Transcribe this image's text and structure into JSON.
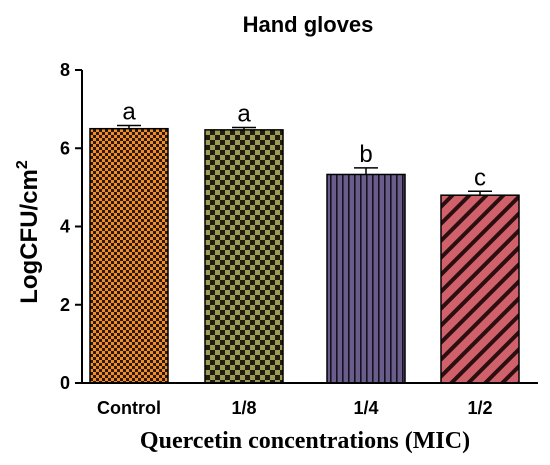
{
  "chart_data": {
    "type": "bar",
    "title": "Hand gloves",
    "xlabel": "Quercetin concentrations (MIC)",
    "ylabel_main": "LogCFU/cm",
    "ylabel_sup": "2",
    "categories": [
      "Control",
      "1/8",
      "1/4",
      "1/2"
    ],
    "values": [
      6.5,
      6.47,
      5.33,
      4.8
    ],
    "errors": [
      0.08,
      0.06,
      0.17,
      0.1
    ],
    "significance": [
      "a",
      "a",
      "b",
      "c"
    ],
    "ylim": [
      0,
      8
    ],
    "yticks": [
      0,
      2,
      4,
      6,
      8
    ],
    "bar_colors": [
      "#f28c28",
      "#8d8a47",
      "#6a5d8c",
      "#d0616b"
    ],
    "bar_patterns": [
      "checker-fine",
      "checker-coarse",
      "vertical-lines",
      "diagonal-lines"
    ],
    "grid": false,
    "legend": "none"
  }
}
